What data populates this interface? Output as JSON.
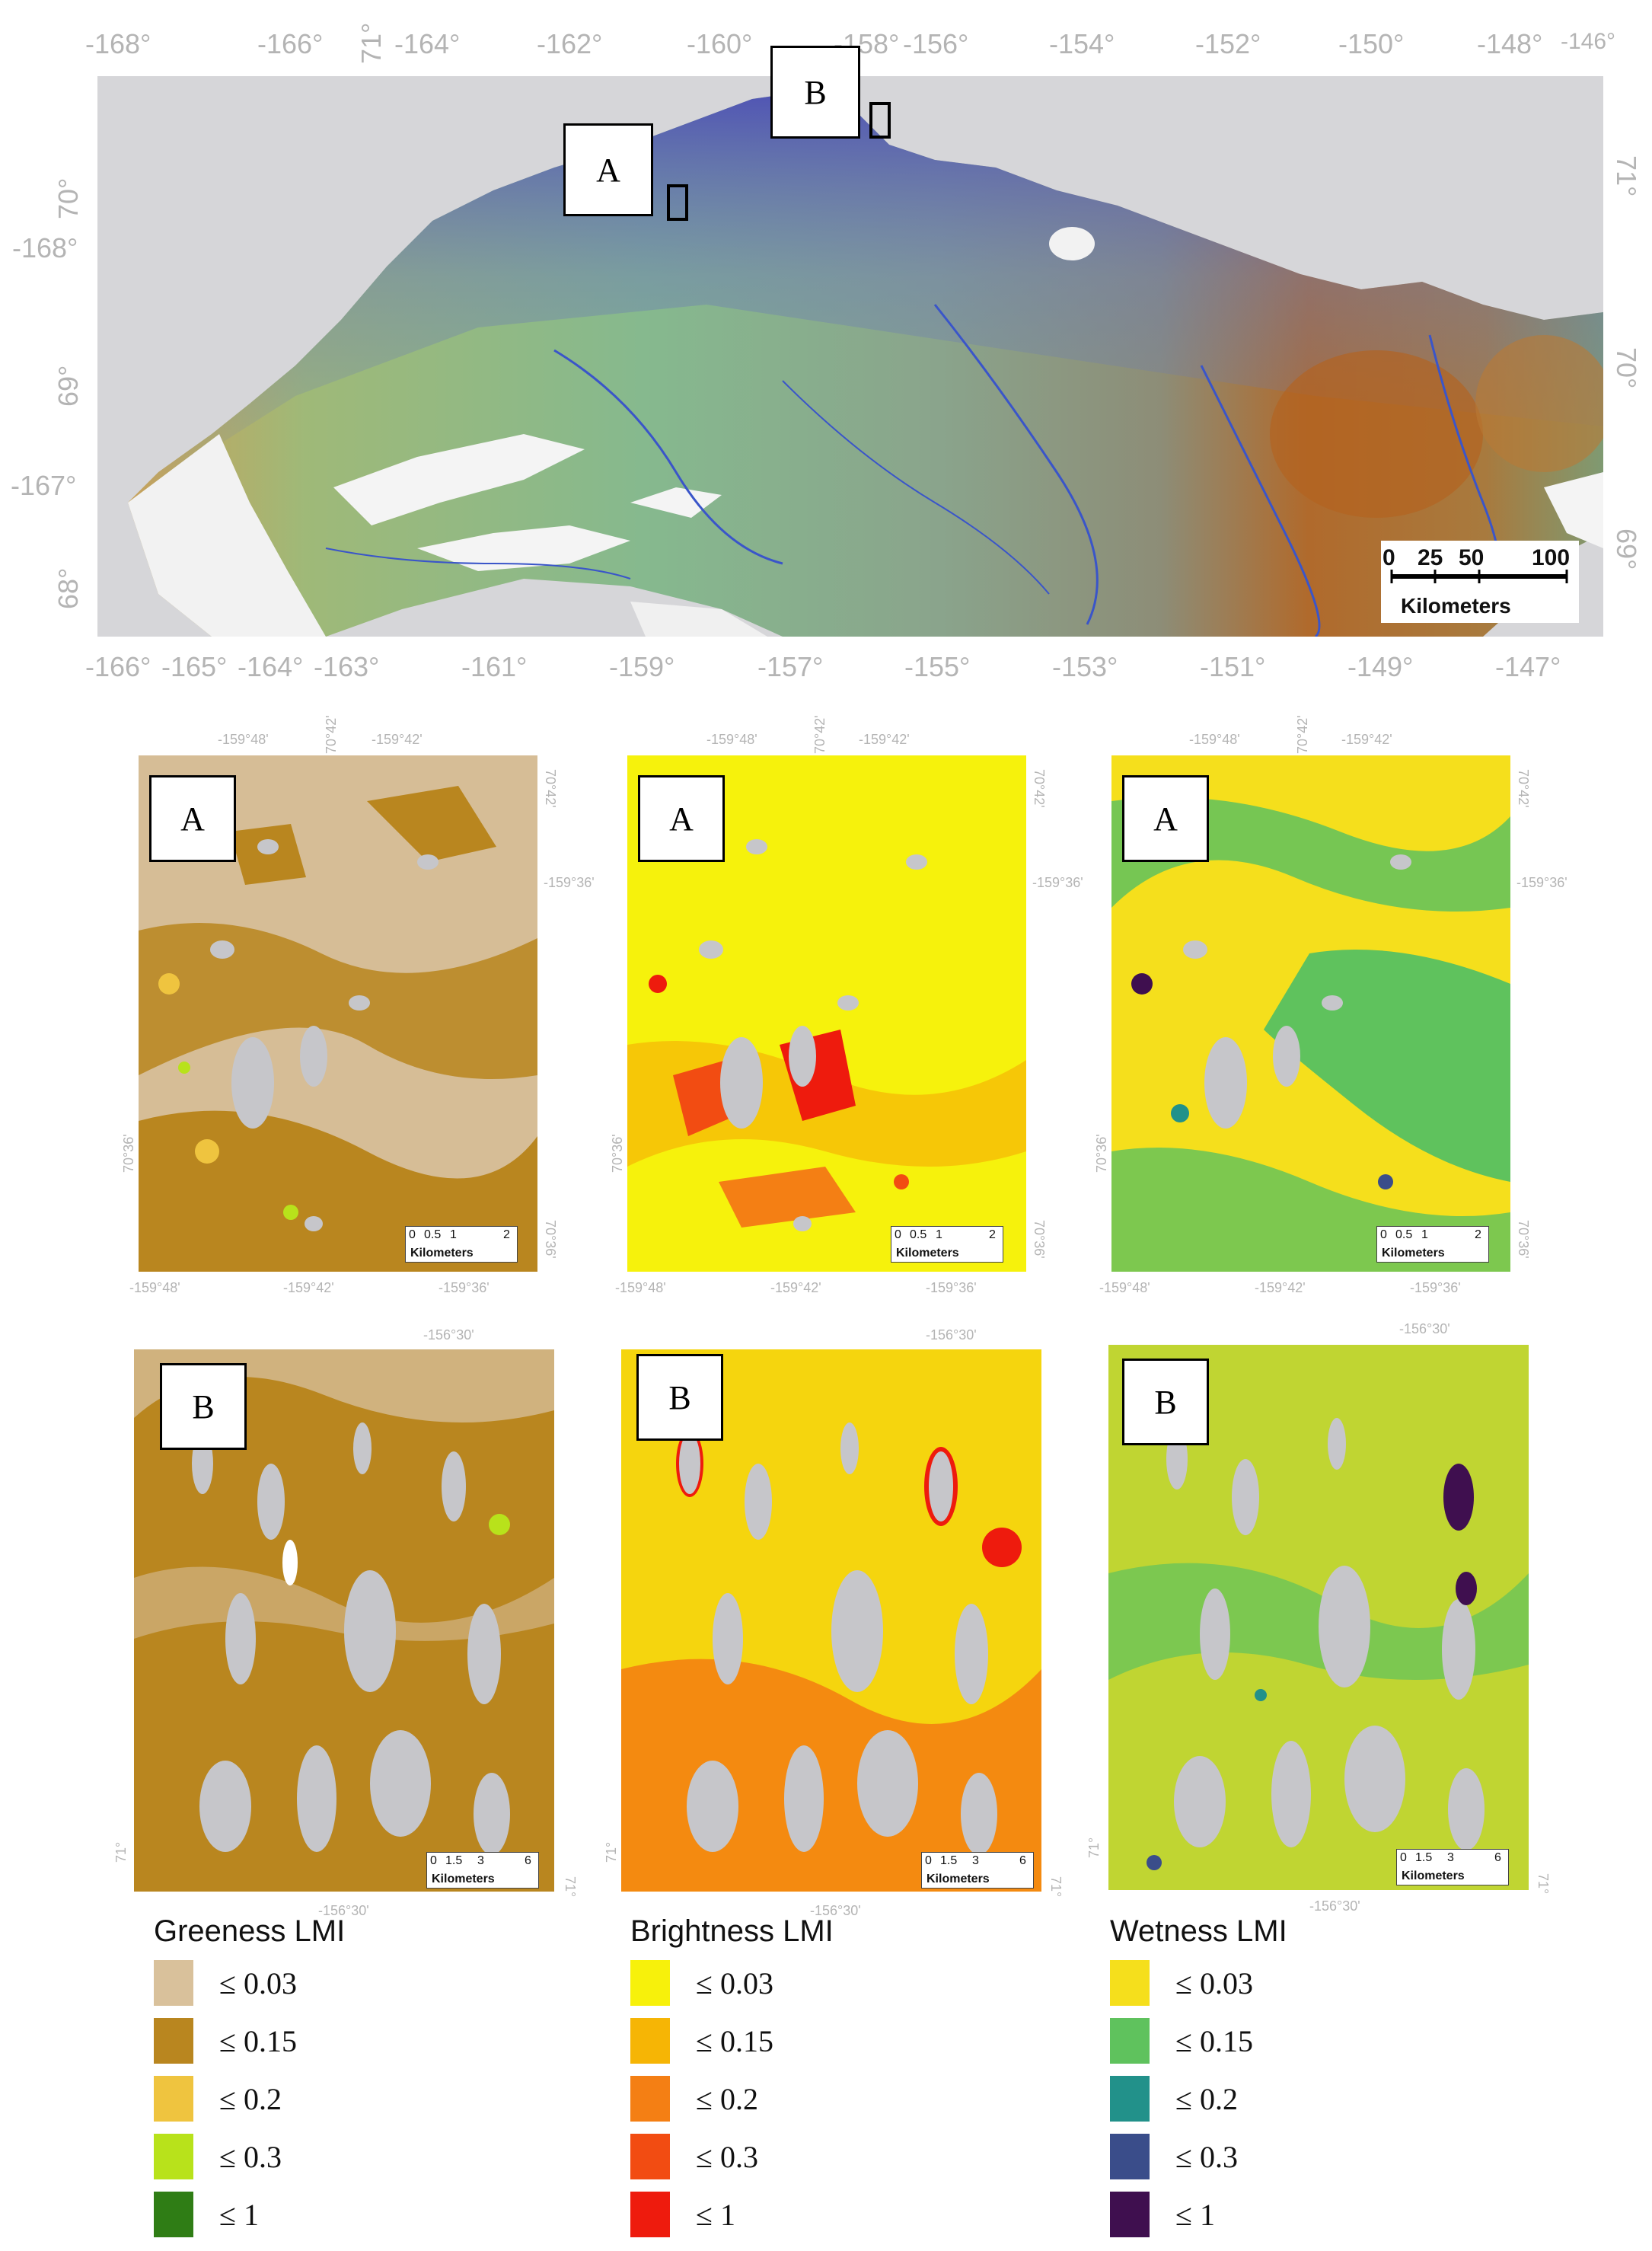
{
  "main_map": {
    "lon_top": [
      "-168°",
      "-166°",
      "71°",
      "-164°",
      "-162°",
      "-160°",
      "-158°",
      "-156°",
      "-154°",
      "-152°",
      "-150°",
      "-148°",
      "-146°"
    ],
    "lon_bottom": [
      "-166°",
      "-165°",
      "-164°",
      "-163°",
      "-161°",
      "-159°",
      "-157°",
      "-155°",
      "-153°",
      "-151°",
      "-149°",
      "-147°"
    ],
    "lat_left": [
      "70°",
      "-168°",
      "69°",
      "-167°",
      "68°"
    ],
    "lat_right": [
      "71°",
      "70°",
      "69°"
    ],
    "inset_labels": {
      "a": "A",
      "b": "B"
    },
    "scale": {
      "ticks": [
        "0",
        "25",
        "50",
        "100"
      ],
      "unit": "Kilometers"
    }
  },
  "panels_a": {
    "label": "A",
    "top_labels": [
      "-159°48'",
      "70°42'",
      "-159°42'"
    ],
    "right_top": "70°42'",
    "right_mid": "-159°36'",
    "left_lat": "70°36'",
    "right_bottom": "70°36'",
    "bottom_labels": [
      "-159°48'",
      "-159°42'",
      "-159°36'"
    ],
    "scale": {
      "ticks": [
        "0",
        "0.5",
        "1",
        "2"
      ],
      "unit": "Kilometers"
    }
  },
  "panels_b": {
    "label": "B",
    "top_label": "-156°30'",
    "left_lat": "71°",
    "right_lat": "71°",
    "bottom_label": "-156°30'",
    "scale": {
      "ticks": [
        "0",
        "1.5",
        "3",
        "6"
      ],
      "unit": "Kilometers"
    }
  },
  "legends": [
    {
      "title": "Greeness LMI",
      "items": [
        {
          "label": "≤ 0.03",
          "color": "#d9c19b"
        },
        {
          "label": "≤ 0.15",
          "color": "#b9861f"
        },
        {
          "label": "≤ 0.2",
          "color": "#efc43f"
        },
        {
          "label": "≤ 0.3",
          "color": "#b8e21b"
        },
        {
          "label": "≤ 1",
          "color": "#2f7d15"
        }
      ]
    },
    {
      "title": "Brightness LMI",
      "items": [
        {
          "label": "≤ 0.03",
          "color": "#f7f10b"
        },
        {
          "label": "≤ 0.15",
          "color": "#f6b505"
        },
        {
          "label": "≤ 0.2",
          "color": "#f47f14"
        },
        {
          "label": "≤ 0.3",
          "color": "#f24c12"
        },
        {
          "label": "≤ 1",
          "color": "#ee1b0d"
        }
      ]
    },
    {
      "title": "Wetness LMI",
      "items": [
        {
          "label": "≤ 0.03",
          "color": "#f5df1c"
        },
        {
          "label": "≤ 0.15",
          "color": "#5fc25d"
        },
        {
          "label": "≤ 0.2",
          "color": "#22918a"
        },
        {
          "label": "≤ 0.3",
          "color": "#3a4d8a"
        },
        {
          "label": "≤ 1",
          "color": "#3f0f4f"
        }
      ]
    }
  ]
}
